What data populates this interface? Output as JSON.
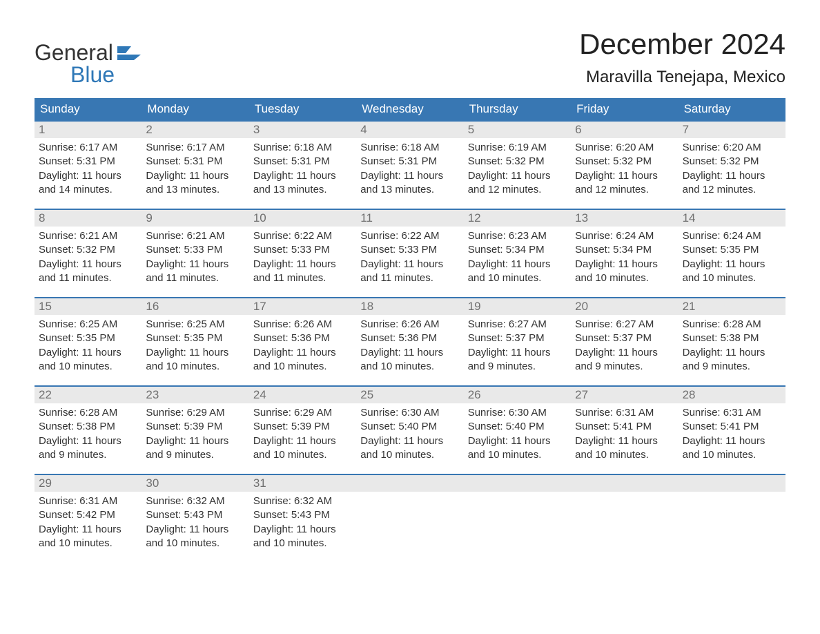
{
  "logo": {
    "text1": "General",
    "text2": "Blue"
  },
  "title": "December 2024",
  "location": "Maravilla Tenejapa, Mexico",
  "colors": {
    "header_bg": "#3877b3",
    "header_text": "#ffffff",
    "daynum_bg": "#e9e9e9",
    "daynum_text": "#707070",
    "body_text": "#333333",
    "rule": "#3877b3",
    "logo_accent": "#2f78b7"
  },
  "day_labels": [
    "Sunday",
    "Monday",
    "Tuesday",
    "Wednesday",
    "Thursday",
    "Friday",
    "Saturday"
  ],
  "weeks": [
    [
      {
        "n": "1",
        "sunrise": "Sunrise: 6:17 AM",
        "sunset": "Sunset: 5:31 PM",
        "dl1": "Daylight: 11 hours",
        "dl2": "and 14 minutes."
      },
      {
        "n": "2",
        "sunrise": "Sunrise: 6:17 AM",
        "sunset": "Sunset: 5:31 PM",
        "dl1": "Daylight: 11 hours",
        "dl2": "and 13 minutes."
      },
      {
        "n": "3",
        "sunrise": "Sunrise: 6:18 AM",
        "sunset": "Sunset: 5:31 PM",
        "dl1": "Daylight: 11 hours",
        "dl2": "and 13 minutes."
      },
      {
        "n": "4",
        "sunrise": "Sunrise: 6:18 AM",
        "sunset": "Sunset: 5:31 PM",
        "dl1": "Daylight: 11 hours",
        "dl2": "and 13 minutes."
      },
      {
        "n": "5",
        "sunrise": "Sunrise: 6:19 AM",
        "sunset": "Sunset: 5:32 PM",
        "dl1": "Daylight: 11 hours",
        "dl2": "and 12 minutes."
      },
      {
        "n": "6",
        "sunrise": "Sunrise: 6:20 AM",
        "sunset": "Sunset: 5:32 PM",
        "dl1": "Daylight: 11 hours",
        "dl2": "and 12 minutes."
      },
      {
        "n": "7",
        "sunrise": "Sunrise: 6:20 AM",
        "sunset": "Sunset: 5:32 PM",
        "dl1": "Daylight: 11 hours",
        "dl2": "and 12 minutes."
      }
    ],
    [
      {
        "n": "8",
        "sunrise": "Sunrise: 6:21 AM",
        "sunset": "Sunset: 5:32 PM",
        "dl1": "Daylight: 11 hours",
        "dl2": "and 11 minutes."
      },
      {
        "n": "9",
        "sunrise": "Sunrise: 6:21 AM",
        "sunset": "Sunset: 5:33 PM",
        "dl1": "Daylight: 11 hours",
        "dl2": "and 11 minutes."
      },
      {
        "n": "10",
        "sunrise": "Sunrise: 6:22 AM",
        "sunset": "Sunset: 5:33 PM",
        "dl1": "Daylight: 11 hours",
        "dl2": "and 11 minutes."
      },
      {
        "n": "11",
        "sunrise": "Sunrise: 6:22 AM",
        "sunset": "Sunset: 5:33 PM",
        "dl1": "Daylight: 11 hours",
        "dl2": "and 11 minutes."
      },
      {
        "n": "12",
        "sunrise": "Sunrise: 6:23 AM",
        "sunset": "Sunset: 5:34 PM",
        "dl1": "Daylight: 11 hours",
        "dl2": "and 10 minutes."
      },
      {
        "n": "13",
        "sunrise": "Sunrise: 6:24 AM",
        "sunset": "Sunset: 5:34 PM",
        "dl1": "Daylight: 11 hours",
        "dl2": "and 10 minutes."
      },
      {
        "n": "14",
        "sunrise": "Sunrise: 6:24 AM",
        "sunset": "Sunset: 5:35 PM",
        "dl1": "Daylight: 11 hours",
        "dl2": "and 10 minutes."
      }
    ],
    [
      {
        "n": "15",
        "sunrise": "Sunrise: 6:25 AM",
        "sunset": "Sunset: 5:35 PM",
        "dl1": "Daylight: 11 hours",
        "dl2": "and 10 minutes."
      },
      {
        "n": "16",
        "sunrise": "Sunrise: 6:25 AM",
        "sunset": "Sunset: 5:35 PM",
        "dl1": "Daylight: 11 hours",
        "dl2": "and 10 minutes."
      },
      {
        "n": "17",
        "sunrise": "Sunrise: 6:26 AM",
        "sunset": "Sunset: 5:36 PM",
        "dl1": "Daylight: 11 hours",
        "dl2": "and 10 minutes."
      },
      {
        "n": "18",
        "sunrise": "Sunrise: 6:26 AM",
        "sunset": "Sunset: 5:36 PM",
        "dl1": "Daylight: 11 hours",
        "dl2": "and 10 minutes."
      },
      {
        "n": "19",
        "sunrise": "Sunrise: 6:27 AM",
        "sunset": "Sunset: 5:37 PM",
        "dl1": "Daylight: 11 hours",
        "dl2": "and 9 minutes."
      },
      {
        "n": "20",
        "sunrise": "Sunrise: 6:27 AM",
        "sunset": "Sunset: 5:37 PM",
        "dl1": "Daylight: 11 hours",
        "dl2": "and 9 minutes."
      },
      {
        "n": "21",
        "sunrise": "Sunrise: 6:28 AM",
        "sunset": "Sunset: 5:38 PM",
        "dl1": "Daylight: 11 hours",
        "dl2": "and 9 minutes."
      }
    ],
    [
      {
        "n": "22",
        "sunrise": "Sunrise: 6:28 AM",
        "sunset": "Sunset: 5:38 PM",
        "dl1": "Daylight: 11 hours",
        "dl2": "and 9 minutes."
      },
      {
        "n": "23",
        "sunrise": "Sunrise: 6:29 AM",
        "sunset": "Sunset: 5:39 PM",
        "dl1": "Daylight: 11 hours",
        "dl2": "and 9 minutes."
      },
      {
        "n": "24",
        "sunrise": "Sunrise: 6:29 AM",
        "sunset": "Sunset: 5:39 PM",
        "dl1": "Daylight: 11 hours",
        "dl2": "and 10 minutes."
      },
      {
        "n": "25",
        "sunrise": "Sunrise: 6:30 AM",
        "sunset": "Sunset: 5:40 PM",
        "dl1": "Daylight: 11 hours",
        "dl2": "and 10 minutes."
      },
      {
        "n": "26",
        "sunrise": "Sunrise: 6:30 AM",
        "sunset": "Sunset: 5:40 PM",
        "dl1": "Daylight: 11 hours",
        "dl2": "and 10 minutes."
      },
      {
        "n": "27",
        "sunrise": "Sunrise: 6:31 AM",
        "sunset": "Sunset: 5:41 PM",
        "dl1": "Daylight: 11 hours",
        "dl2": "and 10 minutes."
      },
      {
        "n": "28",
        "sunrise": "Sunrise: 6:31 AM",
        "sunset": "Sunset: 5:41 PM",
        "dl1": "Daylight: 11 hours",
        "dl2": "and 10 minutes."
      }
    ],
    [
      {
        "n": "29",
        "sunrise": "Sunrise: 6:31 AM",
        "sunset": "Sunset: 5:42 PM",
        "dl1": "Daylight: 11 hours",
        "dl2": "and 10 minutes."
      },
      {
        "n": "30",
        "sunrise": "Sunrise: 6:32 AM",
        "sunset": "Sunset: 5:43 PM",
        "dl1": "Daylight: 11 hours",
        "dl2": "and 10 minutes."
      },
      {
        "n": "31",
        "sunrise": "Sunrise: 6:32 AM",
        "sunset": "Sunset: 5:43 PM",
        "dl1": "Daylight: 11 hours",
        "dl2": "and 10 minutes."
      },
      {
        "n": "",
        "sunrise": "",
        "sunset": "",
        "dl1": "",
        "dl2": ""
      },
      {
        "n": "",
        "sunrise": "",
        "sunset": "",
        "dl1": "",
        "dl2": ""
      },
      {
        "n": "",
        "sunrise": "",
        "sunset": "",
        "dl1": "",
        "dl2": ""
      },
      {
        "n": "",
        "sunrise": "",
        "sunset": "",
        "dl1": "",
        "dl2": ""
      }
    ]
  ]
}
